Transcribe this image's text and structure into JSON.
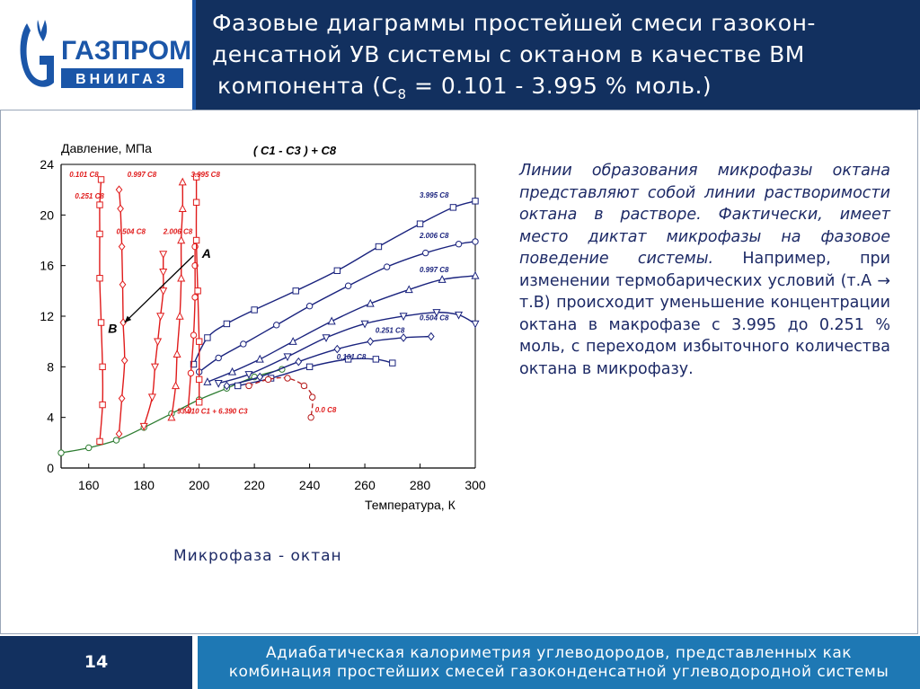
{
  "header": {
    "title_line1": "Фазовые диаграммы простейшей смеси газокон-",
    "title_line2": "денсатной УВ системы с октаном в качестве ВМ",
    "title_line3_prefix": "компонента (С",
    "title_line3_sub": "8",
    "title_line3_suffix": " = 0.101 - 3.995 % моль.)"
  },
  "logo": {
    "name": "ГАЗПРОМ",
    "sub": "ВНИИГАЗ",
    "symbol": "G",
    "brand_color": "#1b56a8"
  },
  "note": {
    "italic": "Линии образования микрофазы октана представляют собой линии растворимости октана в растворе. Фактически, имеет место диктат микрофазы на фазовое поведение системы.",
    "regular": " Например, при изменении термобарических условий (т.А → т.В) происходит уменьшение концентрации октана в макрофазе с 3.995 до  0.251 % моль, с переходом избыточного количества октана в микрофазу."
  },
  "caption": "Микрофаза - октан",
  "footer": {
    "page_number": "14",
    "line1": "Адиабатическая калориметрия углеводородов, представленных как",
    "line2": "комбинация простейших смесей газоконденсатной углеводородной системы"
  },
  "colors": {
    "header_bg": "#12305f",
    "footer_panel": "#1e78b4",
    "blue_curves": "#1a237e",
    "red_curves": "#e01b1b"
  },
  "chart_data": {
    "type": "line",
    "title": "( C1 - C3 ) + C8",
    "ylabel": "Давление, МПа",
    "xlabel": "Температура, К",
    "xlim": [
      150,
      300
    ],
    "ylim": [
      0,
      24
    ],
    "x_ticks": [
      "160",
      "180",
      "200",
      "220",
      "240",
      "260",
      "280",
      "300"
    ],
    "y_ticks": [
      "0",
      "4",
      "8",
      "12",
      "16",
      "20",
      "24"
    ],
    "point_labels": [
      {
        "text": "A",
        "x": 201,
        "y": 16.6
      },
      {
        "text": "B",
        "x": 167,
        "y": 10.7
      }
    ],
    "dew_series": [
      {
        "name": "3.995 C8",
        "marker": "square",
        "points": [
          [
            198,
            8.2
          ],
          [
            203,
            10.3
          ],
          [
            210,
            11.4
          ],
          [
            220,
            12.5
          ],
          [
            235,
            14.0
          ],
          [
            250,
            15.6
          ],
          [
            265,
            17.5
          ],
          [
            280,
            19.3
          ],
          [
            292,
            20.6
          ],
          [
            300,
            21.1
          ]
        ]
      },
      {
        "name": "2.006 C8",
        "marker": "circle",
        "points": [
          [
            200,
            7.6
          ],
          [
            207,
            8.7
          ],
          [
            216,
            9.8
          ],
          [
            228,
            11.3
          ],
          [
            240,
            12.8
          ],
          [
            254,
            14.4
          ],
          [
            268,
            15.9
          ],
          [
            282,
            17.0
          ],
          [
            294,
            17.7
          ],
          [
            300,
            17.9
          ]
        ]
      },
      {
        "name": "0.997 C8",
        "marker": "triangle-up",
        "points": [
          [
            203,
            6.8
          ],
          [
            212,
            7.6
          ],
          [
            222,
            8.6
          ],
          [
            234,
            10.0
          ],
          [
            248,
            11.6
          ],
          [
            262,
            13.0
          ],
          [
            276,
            14.1
          ],
          [
            288,
            14.9
          ],
          [
            300,
            15.2
          ]
        ]
      },
      {
        "name": "0.504 C8",
        "marker": "triangle-down",
        "points": [
          [
            207,
            6.7
          ],
          [
            218,
            7.4
          ],
          [
            232,
            8.8
          ],
          [
            246,
            10.3
          ],
          [
            260,
            11.4
          ],
          [
            274,
            12.0
          ],
          [
            286,
            12.3
          ],
          [
            294,
            12.1
          ],
          [
            300,
            11.4
          ]
        ]
      },
      {
        "name": "0.251 C8",
        "marker": "diamond",
        "points": [
          [
            210,
            6.5
          ],
          [
            222,
            7.2
          ],
          [
            236,
            8.4
          ],
          [
            250,
            9.4
          ],
          [
            262,
            10.0
          ],
          [
            274,
            10.3
          ],
          [
            284,
            10.4
          ]
        ]
      },
      {
        "name": "0.101 C8",
        "marker": "square",
        "points": [
          [
            214,
            6.5
          ],
          [
            226,
            7.1
          ],
          [
            240,
            8.0
          ],
          [
            254,
            8.6
          ],
          [
            264,
            8.6
          ],
          [
            270,
            8.3
          ]
        ]
      }
    ],
    "micro_series": [
      {
        "name": "0.101 C8",
        "marker": "square",
        "points": [
          [
            164,
            2.1
          ],
          [
            165,
            5.0
          ],
          [
            165,
            8.0
          ],
          [
            164.5,
            11.5
          ],
          [
            164,
            15.0
          ],
          [
            164,
            18.5
          ],
          [
            164,
            20.8
          ],
          [
            164.5,
            22.8
          ]
        ]
      },
      {
        "name": "0.251 C8",
        "marker": "diamond",
        "points": [
          [
            171,
            2.7
          ],
          [
            172,
            5.5
          ],
          [
            173,
            8.5
          ],
          [
            172.5,
            11.5
          ],
          [
            172.3,
            14.5
          ],
          [
            172,
            17.5
          ],
          [
            171.5,
            20.5
          ],
          [
            171,
            22.0
          ]
        ]
      },
      {
        "name": "0.504 C8",
        "marker": "triangle-down",
        "points": [
          [
            180,
            3.3
          ],
          [
            183,
            5.6
          ],
          [
            184,
            8.0
          ],
          [
            185,
            10.0
          ],
          [
            186,
            12.0
          ],
          [
            187,
            14.0
          ],
          [
            187,
            15.5
          ],
          [
            187,
            16.9
          ]
        ]
      },
      {
        "name": "0.997 C8",
        "marker": "triangle-up",
        "points": [
          [
            190,
            4.0
          ],
          [
            191.5,
            6.5
          ],
          [
            192,
            9.0
          ],
          [
            193,
            12.0
          ],
          [
            193.5,
            15.0
          ],
          [
            193.5,
            18.0
          ],
          [
            194,
            20.5
          ],
          [
            194,
            22.6
          ]
        ]
      },
      {
        "name": "2.006 C8",
        "marker": "circle",
        "points": [
          [
            196,
            4.6
          ],
          [
            197,
            7.5
          ],
          [
            198,
            10.5
          ],
          [
            198.5,
            13.5
          ],
          [
            198.5,
            16.0
          ],
          [
            198.5,
            17.5
          ]
        ]
      },
      {
        "name": "3.995 C8",
        "marker": "square",
        "points": [
          [
            200,
            5.2
          ],
          [
            200,
            7.0
          ],
          [
            200,
            10.0
          ],
          [
            199.5,
            14.0
          ],
          [
            199,
            18.0
          ],
          [
            199,
            21.0
          ],
          [
            199,
            23.0
          ]
        ]
      }
    ],
    "micro_label_positions": [
      [
        153,
        23.0
      ],
      [
        155,
        21.3
      ],
      [
        170,
        18.5
      ],
      [
        174,
        23.0
      ],
      [
        187,
        18.5
      ],
      [
        197,
        23.0
      ]
    ],
    "micro_labels": [
      "0.101 C8",
      "0.251 C8",
      "0.504 C8",
      "0.997 C8",
      "2.006 C8",
      "3.995 C8"
    ],
    "zero_series": {
      "name": "0.0 C8",
      "points": [
        [
          218,
          6.5
        ],
        [
          225,
          7.0
        ],
        [
          232,
          7.1
        ],
        [
          238,
          6.5
        ],
        [
          241,
          5.6
        ],
        [
          240.5,
          4.0
        ]
      ]
    },
    "bubble_series": {
      "name": "93.610 C1 + 6.390 C3",
      "points": [
        [
          150,
          1.2
        ],
        [
          160,
          1.6
        ],
        [
          170,
          2.2
        ],
        [
          180,
          3.2
        ],
        [
          190,
          4.3
        ],
        [
          200,
          5.4
        ],
        [
          210,
          6.3
        ],
        [
          220,
          7.2
        ],
        [
          230,
          7.8
        ]
      ]
    },
    "annotations": [
      "93.610 C1 + 6.390 C3",
      "0.0 C8"
    ]
  }
}
